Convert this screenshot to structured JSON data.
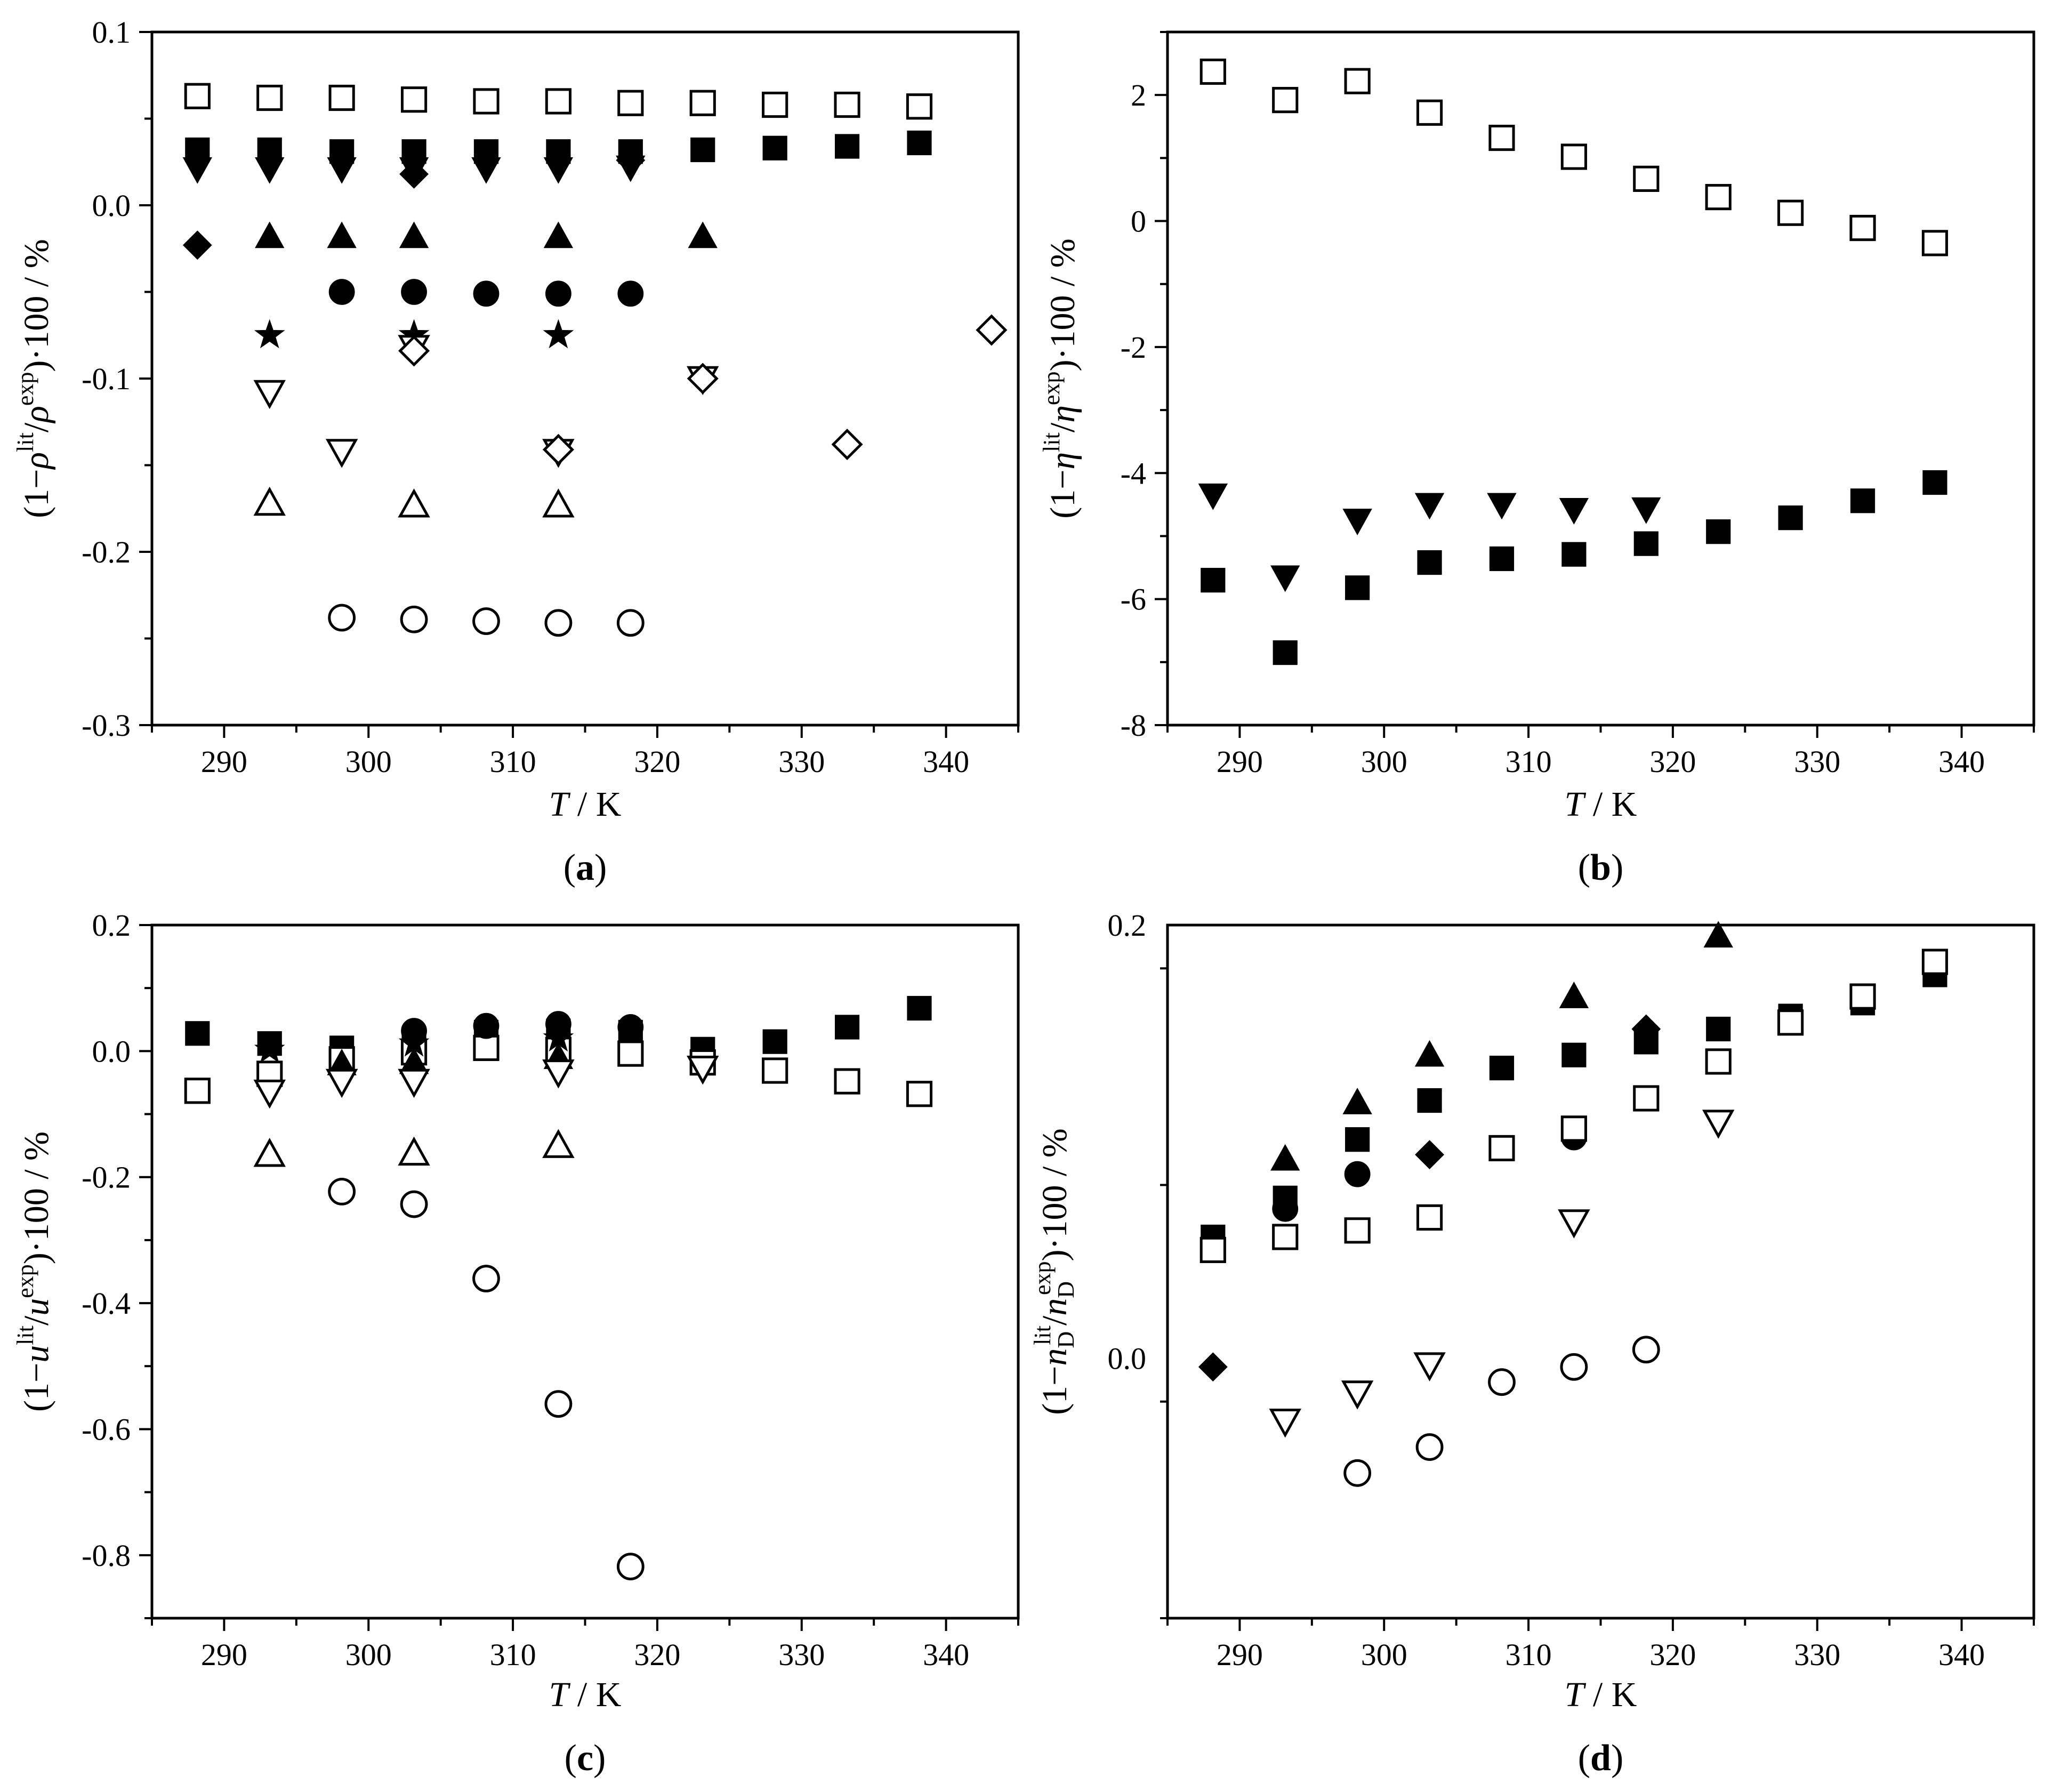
{
  "figure": {
    "panels": [
      "(a)",
      "(b)",
      "(c)",
      "(d)"
    ]
  },
  "chart_data": [
    {
      "type": "scatter",
      "panel_label": "(a)",
      "panel_letter": "a",
      "ylabel_parts": [
        "(1−",
        "ρ",
        "lit",
        "/",
        "ρ",
        "exp",
        ")·100 / %"
      ],
      "xlabel_italic": "T",
      "xlabel_rest": " / K",
      "xlim": [
        285,
        345
      ],
      "ylim": [
        -0.3,
        0.1
      ],
      "xticks": [
        290,
        300,
        310,
        320,
        330,
        340
      ],
      "yticks": [
        -0.3,
        -0.2,
        -0.1,
        0.0,
        0.1
      ],
      "ytick_labels": [
        "-0.3",
        "-0.2",
        "-0.1",
        "0.0",
        "0.1"
      ],
      "series": [
        {
          "name": "open square",
          "marker": "square-open",
          "x": [
            288.15,
            293.15,
            298.15,
            303.15,
            308.15,
            313.15,
            318.15,
            323.15,
            328.15,
            333.15,
            338.15
          ],
          "y": [
            0.063,
            0.062,
            0.062,
            0.061,
            0.06,
            0.06,
            0.059,
            0.059,
            0.058,
            0.058,
            0.057
          ]
        },
        {
          "name": "filled square",
          "marker": "square-filled",
          "x": [
            288.15,
            293.15,
            298.15,
            303.15,
            308.15,
            313.15,
            318.15,
            323.15,
            328.15,
            333.15,
            338.15
          ],
          "y": [
            0.032,
            0.032,
            0.031,
            0.031,
            0.031,
            0.031,
            0.031,
            0.032,
            0.033,
            0.034,
            0.036
          ]
        },
        {
          "name": "filled down triangle",
          "marker": "tri-down-filled",
          "x": [
            288.15,
            293.15,
            298.15,
            303.15,
            308.15,
            313.15,
            318.15
          ],
          "y": [
            0.021,
            0.021,
            0.021,
            0.021,
            0.021,
            0.021,
            0.022
          ]
        },
        {
          "name": "filled diamond",
          "marker": "diamond-filled",
          "x": [
            288.15,
            303.15,
            318.15
          ],
          "y": [
            -0.023,
            0.018,
            0.026
          ]
        },
        {
          "name": "filled up triangle",
          "marker": "tri-up-filled",
          "x": [
            293.15,
            298.15,
            303.15,
            313.15,
            323.15
          ],
          "y": [
            -0.018,
            -0.018,
            -0.018,
            -0.018,
            -0.018
          ]
        },
        {
          "name": "filled circle",
          "marker": "circle-filled",
          "x": [
            298.15,
            303.15,
            308.15,
            313.15,
            318.15
          ],
          "y": [
            -0.05,
            -0.05,
            -0.051,
            -0.051,
            -0.051
          ]
        },
        {
          "name": "filled star",
          "marker": "star-filled",
          "x": [
            293.15,
            303.15,
            313.15
          ],
          "y": [
            -0.075,
            -0.075,
            -0.075
          ]
        },
        {
          "name": "open down triangle",
          "marker": "tri-down-open",
          "x": [
            293.15,
            298.15,
            303.15,
            313.15,
            323.15
          ],
          "y": [
            -0.108,
            -0.142,
            -0.082,
            -0.142,
            -0.1
          ]
        },
        {
          "name": "open diamond",
          "marker": "diamond-open",
          "x": [
            303.15,
            313.15,
            323.15,
            333.15,
            343.15
          ],
          "y": [
            -0.084,
            -0.141,
            -0.1,
            -0.138,
            -0.072
          ]
        },
        {
          "name": "open up triangle",
          "marker": "tri-up-open",
          "x": [
            293.15,
            303.15,
            313.15
          ],
          "y": [
            -0.172,
            -0.173,
            -0.173
          ]
        },
        {
          "name": "open circle",
          "marker": "circle-open",
          "x": [
            298.15,
            303.15,
            308.15,
            313.15,
            318.15
          ],
          "y": [
            -0.238,
            -0.239,
            -0.24,
            -0.241,
            -0.241
          ]
        }
      ]
    },
    {
      "type": "scatter",
      "panel_label": "(b)",
      "panel_letter": "b",
      "ylabel_parts": [
        "(1−",
        "η",
        "lit",
        "/",
        "η",
        "exp",
        ")·100 / %"
      ],
      "xlabel_italic": "T",
      "xlabel_rest": " / K",
      "xlim": [
        285,
        345
      ],
      "ylim": [
        -8,
        3
      ],
      "xticks": [
        290,
        300,
        310,
        320,
        330,
        340
      ],
      "yticks": [
        -8,
        -6,
        -4,
        -2,
        0,
        2
      ],
      "ytick_labels": [
        "-8",
        "-6",
        "-4",
        "-2",
        "0",
        "2"
      ],
      "series": [
        {
          "name": "open square",
          "marker": "square-open",
          "x": [
            288.15,
            293.15,
            298.15,
            303.15,
            308.15,
            313.15,
            318.15,
            323.15,
            328.15,
            333.15,
            338.15
          ],
          "y": [
            2.37,
            1.92,
            2.22,
            1.72,
            1.32,
            1.02,
            0.67,
            0.38,
            0.13,
            -0.11,
            -0.35
          ]
        },
        {
          "name": "filled down triangle",
          "marker": "tri-down-filled",
          "x": [
            288.15,
            293.15,
            298.15,
            303.15,
            308.15,
            313.15,
            318.15
          ],
          "y": [
            -4.35,
            -5.65,
            -4.75,
            -4.5,
            -4.5,
            -4.58,
            -4.57
          ]
        },
        {
          "name": "filled square",
          "marker": "square-filled",
          "x": [
            288.15,
            293.15,
            298.15,
            303.15,
            308.15,
            313.15,
            318.15,
            323.15,
            328.15,
            333.15,
            338.15
          ],
          "y": [
            -5.7,
            -6.85,
            -5.82,
            -5.42,
            -5.36,
            -5.29,
            -5.12,
            -4.93,
            -4.71,
            -4.44,
            -4.15
          ]
        }
      ]
    },
    {
      "type": "scatter",
      "panel_label": "(c)",
      "panel_letter": "c",
      "ylabel_parts": [
        "(1−",
        "u",
        "lit",
        "/",
        "u",
        "exp",
        ")·100 / %"
      ],
      "xlabel_italic": "T",
      "xlabel_rest": " / K",
      "xlim": [
        285,
        345
      ],
      "ylim": [
        -0.9,
        0.2
      ],
      "xticks": [
        290,
        300,
        310,
        320,
        330,
        340
      ],
      "yticks": [
        -0.8,
        -0.6,
        -0.4,
        -0.2,
        0.0,
        0.2
      ],
      "ytick_labels": [
        "-0.8",
        "-0.6",
        "-0.4",
        "-0.2",
        "0.0",
        "0.2"
      ],
      "series": [
        {
          "name": "filled square",
          "marker": "square-filled",
          "x": [
            288.15,
            293.15,
            298.15,
            303.15,
            308.15,
            313.15,
            318.15,
            323.15,
            328.15,
            333.15,
            338.15
          ],
          "y": [
            0.028,
            0.012,
            0.005,
            0.018,
            0.03,
            0.032,
            0.03,
            0.003,
            0.015,
            0.038,
            0.068
          ]
        },
        {
          "name": "open square",
          "marker": "square-open",
          "x": [
            288.15,
            293.15,
            298.15,
            303.15,
            308.15,
            313.15,
            318.15,
            323.15,
            328.15,
            333.15,
            338.15
          ],
          "y": [
            -0.063,
            -0.036,
            -0.013,
            -0.002,
            0.005,
            0.002,
            -0.004,
            -0.018,
            -0.031,
            -0.048,
            -0.068
          ]
        },
        {
          "name": "filled circle",
          "marker": "circle-filled",
          "x": [
            303.15,
            308.15,
            313.15,
            318.15
          ],
          "y": [
            0.032,
            0.04,
            0.043,
            0.038
          ]
        },
        {
          "name": "filled star",
          "marker": "star-filled",
          "x": [
            293.15,
            303.15,
            313.15
          ],
          "y": [
            0.002,
            0.012,
            0.02
          ]
        },
        {
          "name": "filled up triangle",
          "marker": "tri-up-filled",
          "x": [
            298.15,
            303.15,
            313.15
          ],
          "y": [
            -0.02,
            -0.018,
            -0.01
          ]
        },
        {
          "name": "open down triangle",
          "marker": "tri-down-open",
          "x": [
            293.15,
            298.15,
            303.15,
            313.15,
            323.15
          ],
          "y": [
            -0.065,
            -0.048,
            -0.048,
            -0.033,
            -0.027
          ]
        },
        {
          "name": "open up triangle",
          "marker": "tri-up-open",
          "x": [
            293.15,
            303.15,
            313.15
          ],
          "y": [
            -0.164,
            -0.162,
            -0.15
          ]
        },
        {
          "name": "open circle",
          "marker": "circle-open",
          "x": [
            298.15,
            303.15,
            308.15,
            313.15,
            318.15
          ],
          "y": [
            -0.223,
            -0.243,
            -0.361,
            -0.56,
            -0.818
          ]
        }
      ]
    },
    {
      "type": "scatter",
      "panel_label": "(d)",
      "panel_letter": "d",
      "ylabel_parts": [
        "(1−",
        "n",
        "D",
        "lit",
        "/",
        "n",
        "D",
        "exp",
        ")·100 / %"
      ],
      "xlabel_italic": "T",
      "xlabel_rest": " / K",
      "xlim": [
        285,
        345
      ],
      "ylim": [
        -0.12,
        0.2
      ],
      "xticks": [
        290,
        300,
        310,
        320,
        330,
        340
      ],
      "yticks": [
        0.0,
        0.2
      ],
      "ytick_labels": [
        "0.0",
        "0.2"
      ],
      "series": [
        {
          "name": "filled up triangle",
          "marker": "tri-up-filled",
          "x": [
            293.15,
            298.15,
            303.15,
            313.15,
            323.15
          ],
          "y": [
            0.092,
            0.118,
            0.14,
            0.167,
            0.195
          ]
        },
        {
          "name": "filled diamond",
          "marker": "diamond-filled",
          "x": [
            288.15,
            303.15,
            318.15
          ],
          "y": [
            -0.004,
            0.094,
            0.152
          ]
        },
        {
          "name": "filled square",
          "marker": "square-filled",
          "x": [
            288.15,
            293.15,
            298.15,
            303.15,
            308.15,
            313.15,
            318.15,
            323.15,
            328.15,
            333.15,
            338.15
          ],
          "y": [
            0.056,
            0.074,
            0.101,
            0.119,
            0.134,
            0.14,
            0.146,
            0.152,
            0.158,
            0.164,
            0.177
          ]
        },
        {
          "name": "filled circle",
          "marker": "circle-filled",
          "x": [
            293.15,
            298.15,
            313.15
          ],
          "y": [
            0.069,
            0.085,
            0.102
          ]
        },
        {
          "name": "open square",
          "marker": "square-open",
          "x": [
            288.15,
            293.15,
            298.15,
            303.15,
            308.15,
            313.15,
            318.15,
            323.15,
            328.15,
            333.15,
            338.15
          ],
          "y": [
            0.05,
            0.056,
            0.059,
            0.065,
            0.097,
            0.106,
            0.12,
            0.137,
            0.155,
            0.167,
            0.183
          ]
        },
        {
          "name": "open circle",
          "marker": "circle-open",
          "x": [
            298.15,
            303.15,
            308.15,
            313.15,
            318.15
          ],
          "y": [
            -0.053,
            -0.041,
            -0.011,
            -0.004,
            0.004
          ]
        },
        {
          "name": "open down triangle",
          "marker": "tri-down-open",
          "x": [
            293.15,
            298.15,
            303.15,
            313.15,
            323.15
          ],
          "y": [
            -0.029,
            -0.016,
            -0.003,
            0.063,
            0.109
          ]
        }
      ]
    }
  ]
}
